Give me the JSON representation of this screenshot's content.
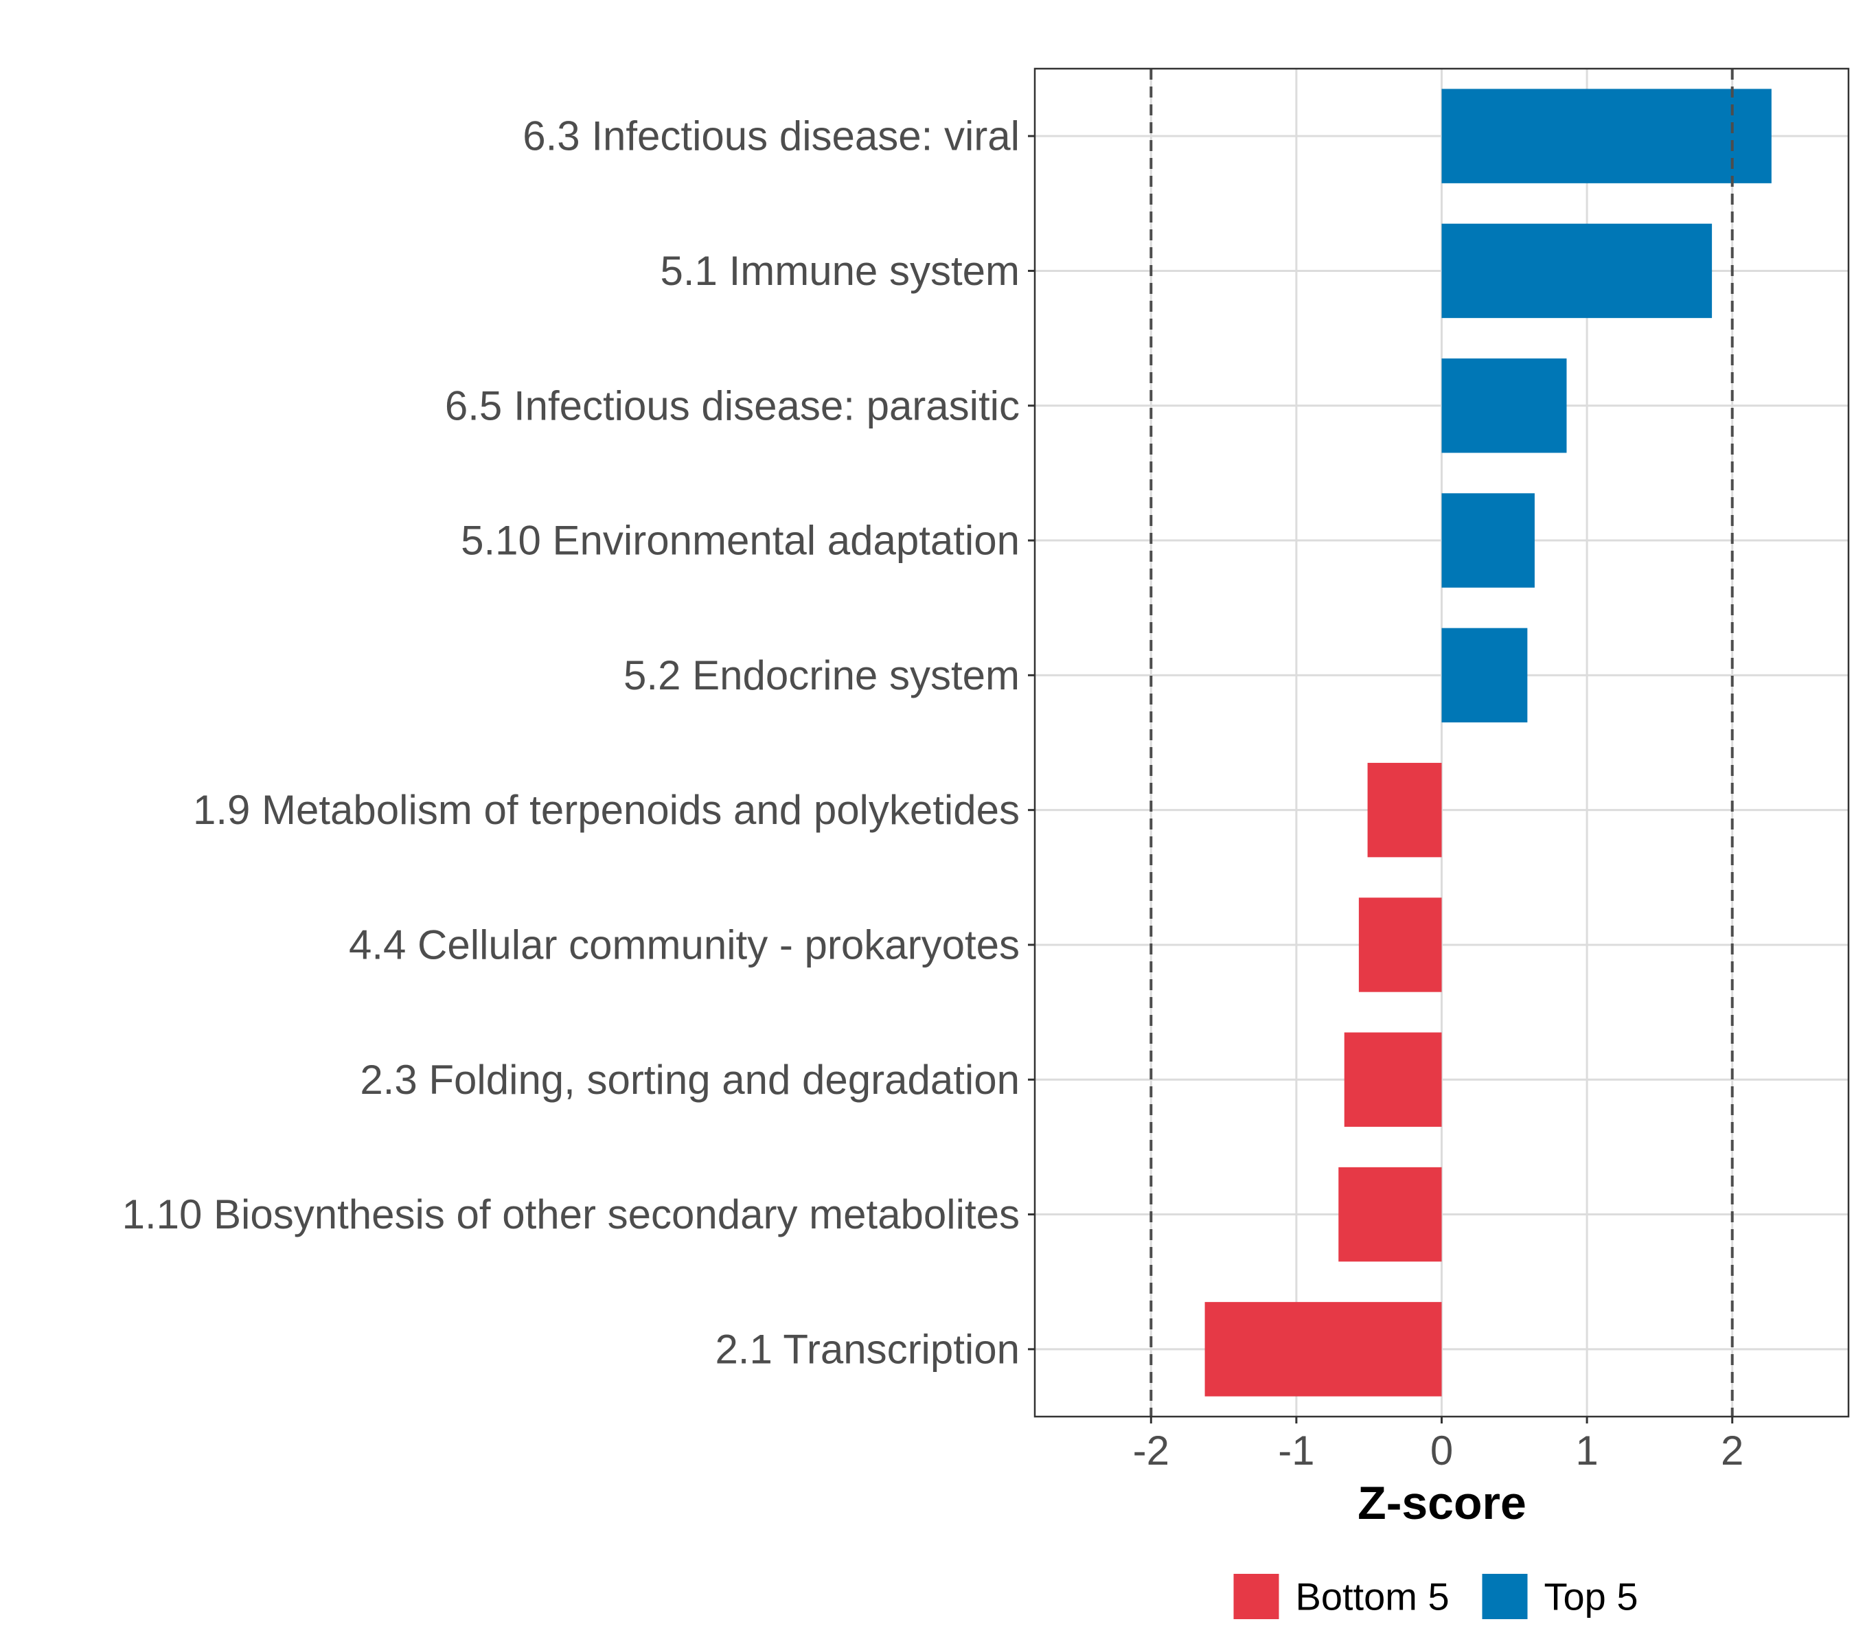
{
  "chart_data": {
    "type": "bar",
    "orientation": "horizontal",
    "title": "",
    "xlabel": "Z-score",
    "ylabel": "",
    "xlim": [
      -2.8,
      2.8
    ],
    "xticks": [
      -2,
      -1,
      0,
      1,
      2
    ],
    "xtick_labels": [
      "-2",
      "-1",
      "0",
      "1",
      "2"
    ],
    "reference_lines": [
      -2,
      2
    ],
    "grid": true,
    "categories": [
      "6.3 Infectious disease: viral",
      "5.1 Immune system",
      "6.5 Infectious disease: parasitic",
      "5.10 Environmental adaptation",
      "5.2 Endocrine system",
      "1.9 Metabolism of terpenoids and polyketides",
      "4.4 Cellular community - prokaryotes",
      "2.3 Folding, sorting and degradation",
      "1.10 Biosynthesis of other secondary metabolites",
      "2.1 Transcription"
    ],
    "values": [
      2.27,
      1.86,
      0.86,
      0.64,
      0.59,
      -0.51,
      -0.57,
      -0.67,
      -0.71,
      -1.63
    ],
    "groups": [
      "Top 5",
      "Top 5",
      "Top 5",
      "Top 5",
      "Top 5",
      "Bottom 5",
      "Bottom 5",
      "Bottom 5",
      "Bottom 5",
      "Bottom 5"
    ],
    "legend": {
      "position": "bottom",
      "entries": [
        {
          "name": "Bottom 5",
          "color": "#E63946"
        },
        {
          "name": "Top 5",
          "color": "#0077B6"
        }
      ]
    }
  }
}
